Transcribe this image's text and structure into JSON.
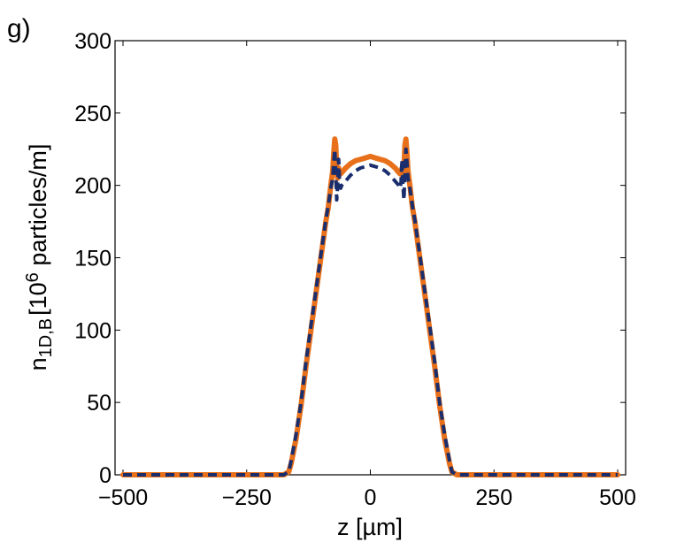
{
  "chart_data": {
    "type": "line",
    "panel_label": "g)",
    "xlabel": "z [µm]",
    "ylabel": {
      "base": "n",
      "sub": "1D,B",
      "bracket": "[10",
      "sup": "6",
      "rest": " particles/m]"
    },
    "xlim": [
      -500,
      500
    ],
    "ylim": [
      0,
      300
    ],
    "xticks": [
      -500,
      -250,
      0,
      250,
      500
    ],
    "xtick_labels": [
      "−500",
      "−250",
      "0",
      "250",
      "500"
    ],
    "yticks": [
      0,
      50,
      100,
      150,
      200,
      250,
      300
    ],
    "ytick_labels": [
      "0",
      "50",
      "100",
      "150",
      "200",
      "250",
      "300"
    ],
    "grid": false,
    "legend": "none",
    "series": [
      {
        "color": "#e8701a",
        "style": "solid",
        "x": [
          -500,
          -200,
          -175,
          -165,
          -160,
          -150,
          -140,
          -130,
          -120,
          -110,
          -100,
          -90,
          -85,
          -80,
          -76,
          -74,
          -72,
          -70,
          -68,
          -66,
          -64,
          -62,
          -60,
          -55,
          -50,
          -40,
          -30,
          -20,
          -10,
          0,
          10,
          20,
          30,
          40,
          50,
          55,
          60,
          62,
          64,
          66,
          68,
          70,
          72,
          74,
          76,
          80,
          85,
          90,
          100,
          110,
          120,
          130,
          140,
          150,
          160,
          165,
          175,
          200,
          500
        ],
        "y": [
          0,
          0,
          0,
          2,
          8,
          25,
          48,
          75,
          100,
          125,
          150,
          175,
          185,
          200,
          210,
          222,
          232,
          228,
          212,
          205,
          212,
          208,
          208,
          210,
          212,
          215,
          217,
          218,
          219,
          220,
          219,
          218,
          217,
          215,
          212,
          210,
          208,
          208,
          212,
          205,
          212,
          228,
          232,
          222,
          210,
          200,
          185,
          175,
          150,
          125,
          100,
          75,
          48,
          25,
          8,
          2,
          0,
          0,
          0
        ]
      },
      {
        "color": "#1a2e6e",
        "style": "dashed",
        "x": [
          -500,
          -200,
          -175,
          -165,
          -160,
          -150,
          -140,
          -130,
          -120,
          -110,
          -100,
          -90,
          -85,
          -80,
          -76,
          -74,
          -72,
          -70,
          -68,
          -66,
          -64,
          -62,
          -60,
          -58,
          -55,
          -50,
          -40,
          -30,
          -20,
          -10,
          0,
          10,
          20,
          30,
          40,
          50,
          55,
          58,
          60,
          62,
          64,
          66,
          68,
          70,
          72,
          74,
          76,
          80,
          85,
          90,
          100,
          110,
          120,
          130,
          140,
          150,
          160,
          165,
          175,
          200,
          500
        ],
        "y": [
          0,
          0,
          0,
          2,
          10,
          28,
          50,
          78,
          103,
          127,
          152,
          176,
          186,
          198,
          205,
          216,
          225,
          210,
          190,
          200,
          218,
          202,
          198,
          200,
          201,
          203,
          207,
          210,
          212,
          213,
          214,
          213,
          212,
          210,
          207,
          203,
          201,
          200,
          198,
          202,
          218,
          200,
          190,
          210,
          225,
          216,
          205,
          198,
          186,
          176,
          152,
          127,
          103,
          78,
          50,
          28,
          10,
          2,
          0,
          0,
          0
        ]
      }
    ]
  }
}
